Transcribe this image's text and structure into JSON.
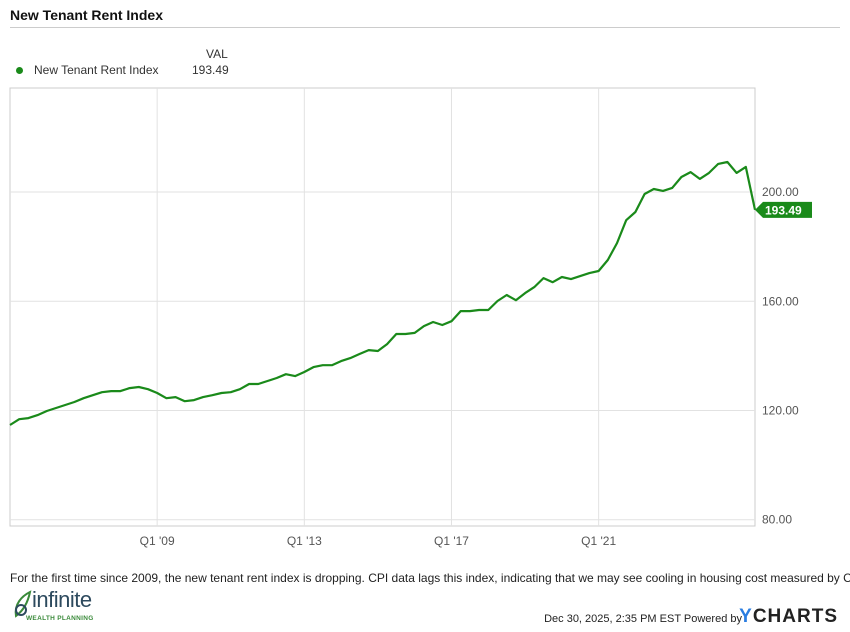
{
  "header": {
    "title": "New Tenant Rent Index"
  },
  "legend": {
    "column_header": "VAL",
    "items": [
      {
        "name": "New Tenant Rent Index",
        "value": "193.49",
        "color": "#1a8a1a"
      }
    ]
  },
  "chart_data": {
    "type": "line",
    "title": "New Tenant Rent Index",
    "x_start": "2005 Q1",
    "x_frequency": "quarterly",
    "x_tick_labels": [
      "Q1 '09",
      "Q1 '13",
      "Q1 '17",
      "Q1 '21"
    ],
    "x_tick_quarter_index": [
      16,
      32,
      48,
      64
    ],
    "y_ticks": [
      "80.00",
      "120.00",
      "160.00",
      "200.00"
    ],
    "y_tick_values": [
      80,
      120,
      160,
      200
    ],
    "ylim": [
      77.7,
      238.1
    ],
    "grid": true,
    "y_axis_side": "right",
    "series": [
      {
        "name": "New Tenant Rent Index",
        "color": "#1a8a1a",
        "last_value_label": "193.49",
        "values": [
          114.7,
          116.8,
          117.2,
          118.3,
          119.8,
          120.9,
          122.0,
          123.1,
          124.5,
          125.6,
          126.7,
          127.1,
          127.1,
          128.2,
          128.6,
          127.8,
          126.4,
          124.5,
          124.9,
          123.4,
          123.8,
          124.9,
          125.6,
          126.4,
          126.7,
          127.8,
          129.7,
          129.7,
          130.8,
          131.9,
          133.3,
          132.6,
          134.1,
          135.9,
          136.6,
          136.6,
          138.1,
          139.2,
          140.7,
          142.1,
          141.8,
          144.3,
          148.0,
          148.0,
          148.4,
          150.9,
          152.4,
          151.3,
          152.7,
          156.4,
          156.4,
          156.8,
          156.8,
          160.1,
          162.3,
          160.4,
          163.0,
          165.2,
          168.5,
          167.0,
          168.9,
          168.1,
          169.2,
          170.3,
          171.1,
          175.1,
          181.3,
          189.7,
          192.7,
          199.3,
          201.1,
          200.4,
          201.5,
          205.5,
          207.3,
          204.8,
          207.0,
          210.3,
          211.0,
          207.0,
          209.2,
          193.49
        ]
      }
    ]
  },
  "footer": {
    "caption": "For the first time since 2009, the new tenant rent index is dropping.  CPI data lags this index, indicating that we may see cooling in housing cost measured by CPI",
    "logo_name": "infinite",
    "logo_sub": "WEALTH PLANNING",
    "timestamp": "Dec 30, 2025, 2:35 PM EST Powered by",
    "brand_y": "Y",
    "brand_rest": "CHARTS"
  }
}
